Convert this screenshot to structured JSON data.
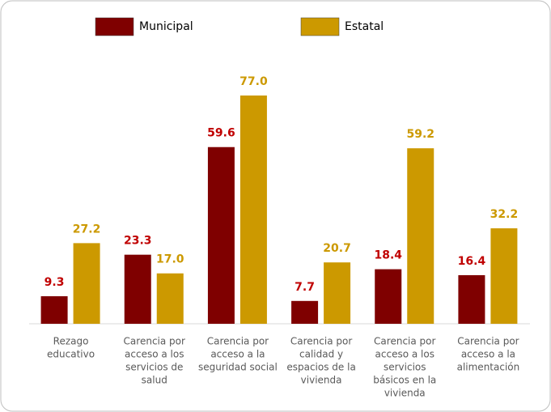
{
  "chart_data": {
    "type": "bar",
    "categories": [
      [
        "Rezago",
        "educativo"
      ],
      [
        "Carencia por",
        "acceso a los",
        "servicios de",
        "salud"
      ],
      [
        "Carencia por",
        "acceso a la",
        "seguridad social"
      ],
      [
        "Carencia por",
        "calidad y",
        "espacios de la",
        "vivienda"
      ],
      [
        "Carencia por",
        "acceso a los",
        "servicios",
        "básicos en la",
        "vivienda"
      ],
      [
        "Carencia por",
        "acceso a la",
        "alimentación"
      ]
    ],
    "series": [
      {
        "name": "Municipal",
        "color": "#7f0000",
        "label_color": "#c00000",
        "values": [
          9.3,
          23.3,
          59.6,
          7.7,
          18.4,
          16.4
        ],
        "value_labels": [
          "9.3",
          "23.3",
          "59.6",
          "7.7",
          "18.4",
          "16.4"
        ]
      },
      {
        "name": "Estatal",
        "color": "#cc9900",
        "label_color": "#cc9900",
        "values": [
          27.2,
          17.0,
          77.0,
          20.7,
          59.2,
          32.2
        ],
        "value_labels": [
          "27.2",
          "17.0",
          "77.0",
          "20.7",
          "59.2",
          "32.2"
        ]
      }
    ]
  }
}
